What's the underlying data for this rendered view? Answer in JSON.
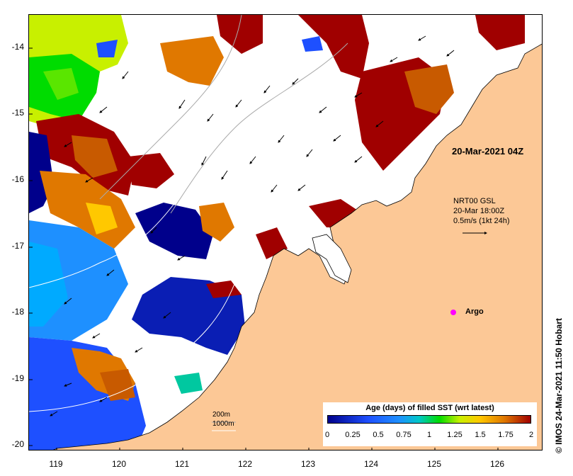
{
  "map": {
    "timestamp": "20-Mar-2021 04Z",
    "current_source": "NRT00 GSL",
    "current_time": "20-Mar 18:00Z",
    "current_scale": "0.5m/s (1kt 24h)",
    "argo_label": "Argo",
    "credit": "© IMOS 24-Mar-2021 11:50 Hobart",
    "depth_label_1": "200m",
    "depth_label_2": "1000m",
    "y_ticks": [
      "-14",
      "-15",
      "-16",
      "-17",
      "-18",
      "-19",
      "-20"
    ],
    "x_ticks": [
      "119",
      "120",
      "121",
      "122",
      "123",
      "124",
      "125",
      "126"
    ],
    "colors": {
      "land": "#fcc896",
      "age_0": "#00008b",
      "age_05": "#1e90ff",
      "age_075": "#00c8a0",
      "age_1": "#00dc00",
      "age_125": "#c8f000",
      "age_15": "#ffc800",
      "age_175": "#e07800",
      "age_2": "#a00000"
    }
  },
  "legend": {
    "title": "Age (days) of filled SST (wrt latest)",
    "ticks": [
      "0",
      "0.25",
      "0.5",
      "0.75",
      "1",
      "1.25",
      "1.5",
      "1.75",
      "2"
    ]
  }
}
